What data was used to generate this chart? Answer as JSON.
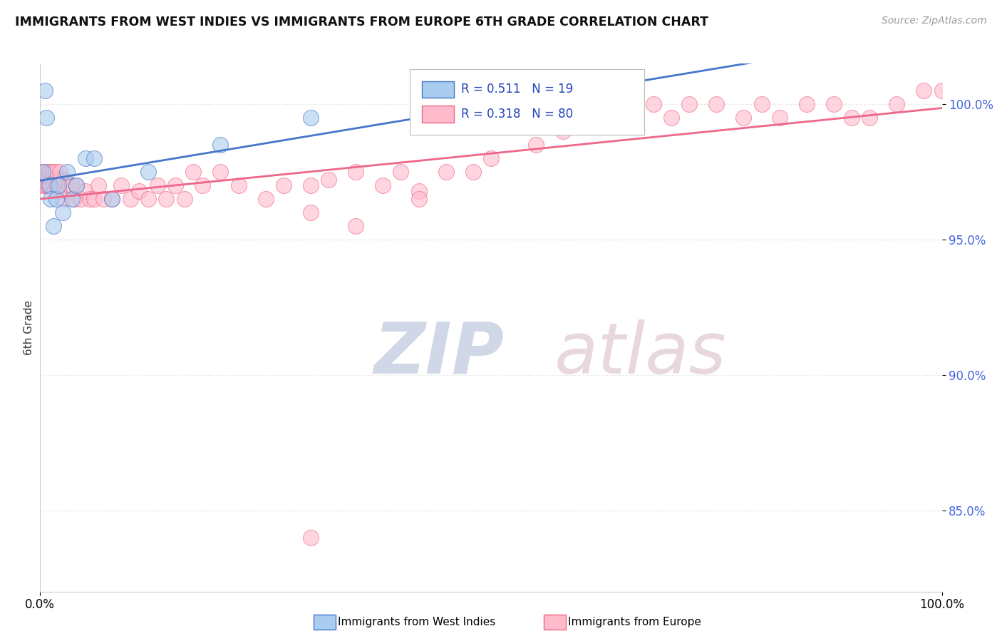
{
  "title": "IMMIGRANTS FROM WEST INDIES VS IMMIGRANTS FROM EUROPE 6TH GRADE CORRELATION CHART",
  "source": "Source: ZipAtlas.com",
  "ylabel": "6th Grade",
  "watermark_zip": "ZIP",
  "watermark_atlas": "atlas",
  "blue_color": "#AACCEE",
  "pink_color": "#FFBBCC",
  "blue_line_color": "#4477CC",
  "pink_line_color": "#EE6688",
  "blue_R": 0.511,
  "blue_N": 19,
  "pink_R": 0.318,
  "pink_N": 80,
  "xlim": [
    0.0,
    100.0
  ],
  "ylim": [
    82.0,
    101.5
  ],
  "y_ticks": [
    85.0,
    90.0,
    95.0,
    100.0
  ],
  "y_tick_labels": [
    "85.0%",
    "90.0%",
    "95.0%",
    "100.0%"
  ],
  "blue_x": [
    0.3,
    0.5,
    0.7,
    1.0,
    1.2,
    1.5,
    1.8,
    2.0,
    2.5,
    3.0,
    3.5,
    4.0,
    5.0,
    6.0,
    8.0,
    12.0,
    20.0,
    30.0,
    45.0
  ],
  "blue_y": [
    97.5,
    100.5,
    99.5,
    97.0,
    96.5,
    95.5,
    96.5,
    97.0,
    96.0,
    97.5,
    96.5,
    97.0,
    98.0,
    98.0,
    96.5,
    97.5,
    98.5,
    99.5,
    99.5
  ],
  "pink_x": [
    0.2,
    0.3,
    0.4,
    0.5,
    0.6,
    0.7,
    0.8,
    0.9,
    1.0,
    1.1,
    1.2,
    1.3,
    1.4,
    1.5,
    1.6,
    1.7,
    1.8,
    1.9,
    2.0,
    2.1,
    2.2,
    2.3,
    2.5,
    2.7,
    3.0,
    3.2,
    3.5,
    3.8,
    4.0,
    4.5,
    5.0,
    5.5,
    6.0,
    6.5,
    7.0,
    8.0,
    9.0,
    10.0,
    11.0,
    12.0,
    13.0,
    14.0,
    15.0,
    16.0,
    17.0,
    18.0,
    20.0,
    22.0,
    25.0,
    27.0,
    30.0,
    32.0,
    35.0,
    38.0,
    40.0,
    42.0,
    45.0,
    48.0,
    50.0,
    55.0,
    58.0,
    62.0,
    65.0,
    68.0,
    70.0,
    72.0,
    75.0,
    78.0,
    80.0,
    82.0,
    85.0,
    88.0,
    90.0,
    92.0,
    95.0,
    98.0,
    100.0,
    30.0,
    35.0,
    42.0
  ],
  "pink_y": [
    97.0,
    97.5,
    97.2,
    97.0,
    97.5,
    97.2,
    97.0,
    97.5,
    97.0,
    97.5,
    97.0,
    97.2,
    97.5,
    97.0,
    96.8,
    97.5,
    97.0,
    97.0,
    96.8,
    97.2,
    97.5,
    97.0,
    96.5,
    97.2,
    96.8,
    97.0,
    97.0,
    96.5,
    97.0,
    96.5,
    96.8,
    96.5,
    96.5,
    97.0,
    96.5,
    96.5,
    97.0,
    96.5,
    96.8,
    96.5,
    97.0,
    96.5,
    97.0,
    96.5,
    97.5,
    97.0,
    97.5,
    97.0,
    96.5,
    97.0,
    97.0,
    97.2,
    97.5,
    97.0,
    97.5,
    96.8,
    97.5,
    97.5,
    98.0,
    98.5,
    99.0,
    99.5,
    99.5,
    100.0,
    99.5,
    100.0,
    100.0,
    99.5,
    100.0,
    99.5,
    100.0,
    100.0,
    99.5,
    99.5,
    100.0,
    100.5,
    100.5,
    96.0,
    95.5,
    96.5
  ],
  "pink_outlier_x": [
    30.0
  ],
  "pink_outlier_y": [
    84.0
  ],
  "legend_label_color": "#2244BB",
  "ytick_color": "#4466DD",
  "grid_color": "#DDDDDD",
  "background_color": "white",
  "title_color": "#111111",
  "source_color": "#999999"
}
